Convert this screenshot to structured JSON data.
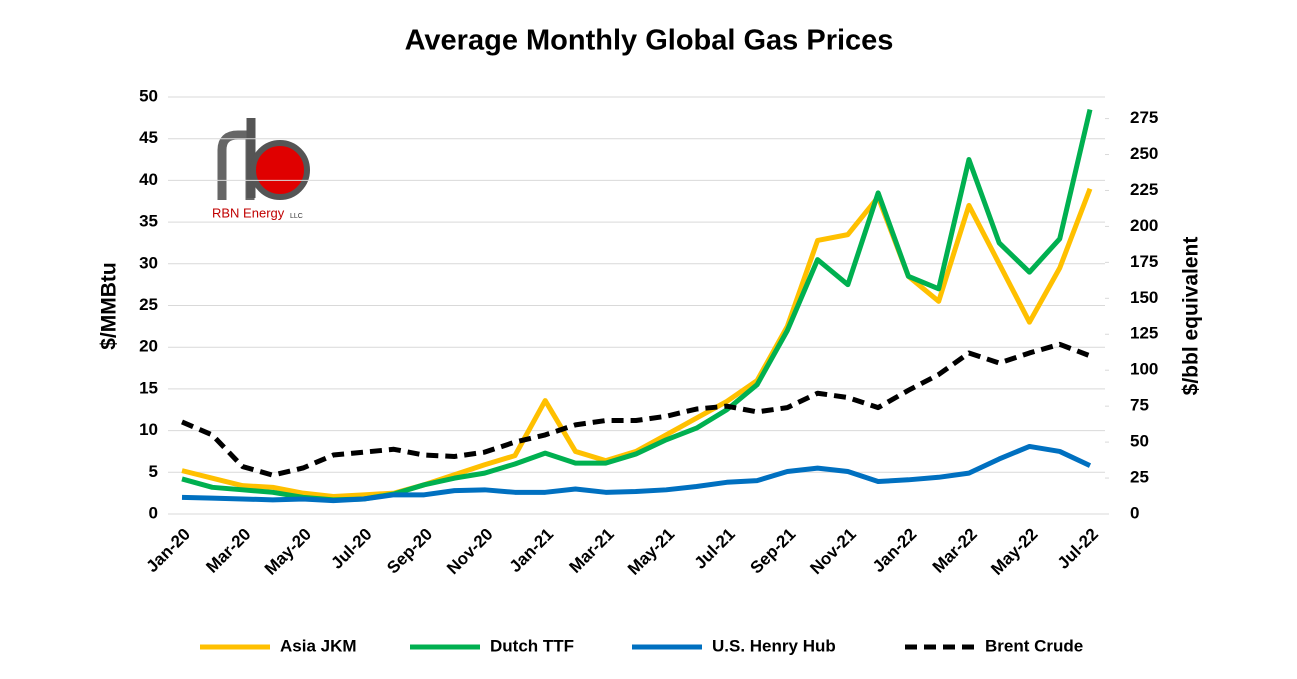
{
  "chart_data": {
    "type": "line",
    "title": "Average Monthly Global Gas Prices",
    "ylabel": "$/MMBtu",
    "y2label": "$/bbl equivalent",
    "categories": [
      "Jan-20",
      null,
      "Mar-20",
      null,
      "May-20",
      null,
      "Jul-20",
      null,
      "Sep-20",
      null,
      "Nov-20",
      null,
      "Jan-21",
      null,
      "Mar-21",
      null,
      "May-21",
      null,
      "Jul-21",
      null,
      "Sep-21",
      null,
      "Nov-21",
      null,
      "Jan-22",
      null,
      "Mar-22",
      null,
      "May-22",
      null,
      "Jul-22"
    ],
    "series": [
      {
        "name": "Asia JKM",
        "color": "#ffc000",
        "linestyle": "solid",
        "values": [
          5.2,
          4.3,
          3.4,
          3.2,
          2.5,
          2.1,
          2.3,
          2.5,
          3.5,
          4.7,
          5.9,
          7.0,
          13.6,
          7.5,
          6.4,
          7.5,
          9.5,
          11.5,
          13.5,
          16.0,
          22.5,
          32.8,
          33.5,
          38.0,
          28.5,
          25.5,
          37.0,
          30.0,
          23.0,
          29.5,
          39.0
        ]
      },
      {
        "name": "Dutch TTF",
        "color": "#00b050",
        "linestyle": "solid",
        "values": [
          4.2,
          3.2,
          2.9,
          2.6,
          2.0,
          1.7,
          1.8,
          2.4,
          3.5,
          4.3,
          4.9,
          6.0,
          7.3,
          6.1,
          6.1,
          7.2,
          8.9,
          10.3,
          12.5,
          15.5,
          22.0,
          30.5,
          27.5,
          38.5,
          28.5,
          27.0,
          42.5,
          32.5,
          29.0,
          33.0,
          48.5
        ]
      },
      {
        "name": "U.S. Henry Hub",
        "color": "#0070c0",
        "linestyle": "solid",
        "values": [
          2.0,
          1.9,
          1.8,
          1.7,
          1.8,
          1.6,
          1.8,
          2.3,
          2.3,
          2.8,
          2.9,
          2.6,
          2.6,
          3.0,
          2.6,
          2.7,
          2.9,
          3.3,
          3.8,
          4.0,
          5.1,
          5.5,
          5.1,
          3.9,
          4.1,
          4.4,
          4.9,
          6.6,
          8.1,
          7.5,
          5.8
        ]
      },
      {
        "name": "Brent Crude",
        "color": "#000000",
        "linestyle": "dashed",
        "axis": "y2",
        "values": [
          64,
          55,
          33,
          27,
          32,
          41,
          43,
          45,
          41,
          40,
          43,
          50,
          55,
          62,
          65,
          65,
          68,
          73,
          75,
          71,
          74,
          84,
          81,
          74,
          86,
          97,
          112,
          105,
          112,
          118,
          110
        ]
      }
    ],
    "ylim": [
      0,
      50
    ],
    "yticks": [
      0,
      5,
      10,
      15,
      20,
      25,
      30,
      35,
      40,
      45,
      50
    ],
    "y2lim": [
      0,
      290
    ],
    "y2ticks": [
      0,
      25,
      50,
      75,
      100,
      125,
      150,
      175,
      200,
      225,
      250,
      275
    ],
    "grid": true,
    "legend": "bottom"
  },
  "logo": {
    "text": "RBN Energy",
    "suffix": "LLC"
  }
}
